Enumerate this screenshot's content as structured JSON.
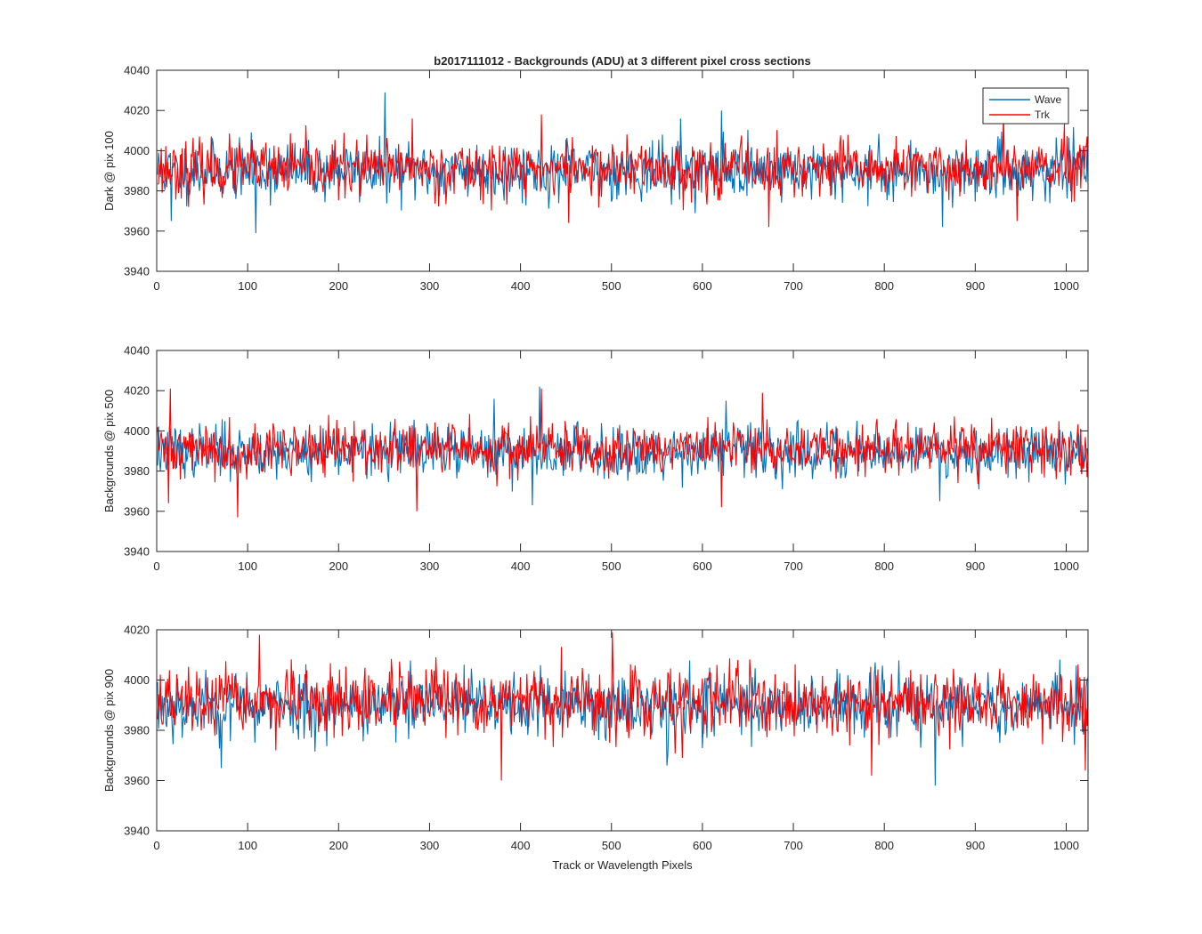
{
  "figure": {
    "title": "b2017111012 - Backgrounds (ADU) at 3 different pixel cross sections",
    "xlabel": "Track or Wavelength Pixels"
  },
  "legend": {
    "entries": [
      "Wave",
      "Trk"
    ],
    "location": "top-right of top panel"
  },
  "colors": {
    "Wave": "#0072BD",
    "Trk": "#FF0000",
    "axes": "#262626"
  },
  "chart_data": [
    {
      "type": "line",
      "ylabel": "Dark @ pix 100",
      "xlim": [
        0,
        1024
      ],
      "ylim": [
        3940,
        4040
      ],
      "xticks": [
        0,
        100,
        200,
        300,
        400,
        500,
        600,
        700,
        800,
        900,
        1000
      ],
      "yticks": [
        3940,
        3960,
        3980,
        4000,
        4020,
        4040
      ],
      "x_range": "pixels 1-1024 (one sample per pixel)",
      "series": [
        {
          "name": "Wave",
          "mean": 3990,
          "std": 7,
          "seed": 11,
          "spikes": [
            [
              250,
              4029
            ],
            [
              108,
              3959
            ],
            [
              620,
              4020
            ],
            [
              863,
              3962
            ],
            [
              15,
              3965
            ],
            [
              575,
              4016
            ]
          ]
        },
        {
          "name": "Trk",
          "mean": 3991,
          "std": 7,
          "seed": 23,
          "spikes": [
            [
              452,
              3964
            ],
            [
              672,
              3962
            ],
            [
              945,
              3965
            ],
            [
              422,
              4018
            ],
            [
              930,
              4020
            ],
            [
              280,
              4016
            ],
            [
              1022,
              4007
            ]
          ]
        }
      ]
    },
    {
      "type": "line",
      "ylabel": "Backgrounds @ pix 500",
      "xlim": [
        0,
        1024
      ],
      "ylim": [
        3940,
        4040
      ],
      "xticks": [
        0,
        100,
        200,
        300,
        400,
        500,
        600,
        700,
        800,
        900,
        1000
      ],
      "yticks": [
        3940,
        3960,
        3980,
        4000,
        4020,
        4040
      ],
      "x_range": "pixels 1-1024 (one sample per pixel)",
      "series": [
        {
          "name": "Wave",
          "mean": 3990,
          "std": 6.5,
          "seed": 37,
          "spikes": [
            [
              420,
              4022
            ],
            [
              412,
              3963
            ],
            [
              625,
              4015
            ],
            [
              370,
              4016
            ],
            [
              860,
              3965
            ]
          ]
        },
        {
          "name": "Trk",
          "mean": 3991,
          "std": 6.5,
          "seed": 41,
          "spikes": [
            [
              14,
              4021
            ],
            [
              88,
              3957
            ],
            [
              285,
              3960
            ],
            [
              620,
              3962
            ],
            [
              665,
              4019
            ],
            [
              422,
              4021
            ],
            [
              12,
              3964
            ],
            [
              1022,
              3977
            ]
          ]
        }
      ]
    },
    {
      "type": "line",
      "ylabel": "Backgrounds @ pix 900",
      "xlim": [
        0,
        1024
      ],
      "ylim": [
        3940,
        4020
      ],
      "xticks": [
        0,
        100,
        200,
        300,
        400,
        500,
        600,
        700,
        800,
        900,
        1000
      ],
      "yticks": [
        3940,
        3960,
        3980,
        4000,
        4020
      ],
      "x_range": "pixels 1-1024 (one sample per pixel)",
      "series": [
        {
          "name": "Wave",
          "mean": 3990,
          "std": 6.5,
          "seed": 53,
          "spikes": [
            [
              855,
              3958
            ],
            [
              70,
              3965
            ],
            [
              560,
              3966
            ]
          ]
        },
        {
          "name": "Trk",
          "mean": 3991,
          "std": 6.5,
          "seed": 67,
          "spikes": [
            [
              112,
              4018
            ],
            [
              500,
              4019
            ],
            [
              378,
              3960
            ],
            [
              785,
              3962
            ],
            [
              1020,
              3964
            ]
          ]
        }
      ]
    }
  ]
}
